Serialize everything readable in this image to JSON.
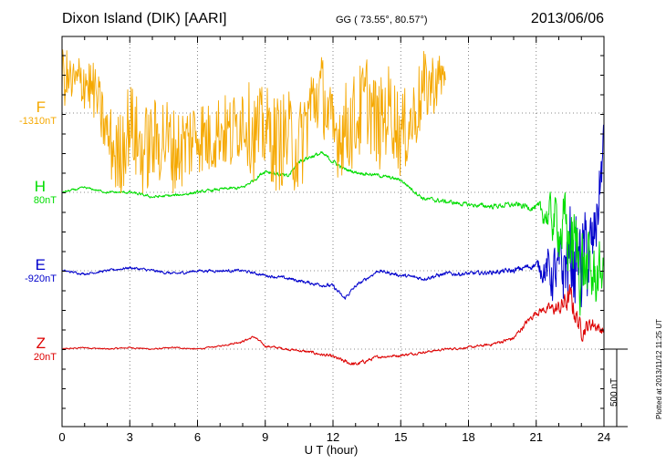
{
  "header": {
    "station": "Dixon Island (DIK)  [AARI]",
    "coords": "GG ( 73.55°,  80.57°)",
    "date": "2013/06/06"
  },
  "footer": {
    "plotted": "Plotted at 2013/11/12 11:25 UT"
  },
  "chart_data": {
    "type": "line",
    "title": "",
    "xlabel": "U T (hour)",
    "ylabel": "",
    "xlim": [
      0,
      24
    ],
    "xticks": [
      0,
      3,
      6,
      9,
      12,
      15,
      18,
      21,
      24
    ],
    "grid": true,
    "scale_bar_label": "500 nT",
    "series": [
      {
        "name": "F",
        "offset_label": "-1310nT",
        "color": "#f5a800",
        "x": [
          0,
          0.5,
          1,
          1.5,
          2,
          2.5,
          3,
          3.5,
          4,
          4.5,
          5,
          5.5,
          6,
          6.5,
          7,
          7.5,
          8,
          8.5,
          9,
          9.5,
          10,
          10.5,
          11,
          11.5,
          12,
          12.5,
          13,
          13.5,
          14,
          14.5,
          15,
          15.5,
          16,
          16.5,
          17
        ],
        "y": [
          250,
          180,
          220,
          120,
          -150,
          -300,
          -50,
          -250,
          -200,
          -150,
          -250,
          -200,
          -120,
          -180,
          -100,
          -150,
          0,
          -150,
          -100,
          -200,
          -150,
          -250,
          50,
          150,
          -150,
          -100,
          -50,
          100,
          -100,
          50,
          -150,
          -50,
          150,
          200,
          250
        ],
        "noise_amplitude": [
          200,
          180,
          200,
          180,
          220,
          300,
          280,
          300,
          280,
          300,
          280,
          280,
          260,
          250,
          240,
          260,
          260,
          300,
          280,
          320,
          300,
          320,
          280,
          250,
          280,
          300,
          320,
          300,
          300,
          280,
          280,
          260,
          250,
          200,
          120
        ]
      },
      {
        "name": "H",
        "offset_label": "80nT",
        "color": "#00dd00",
        "x": [
          0,
          1,
          2,
          3,
          4,
          5,
          6,
          7,
          8,
          8.5,
          9,
          10,
          10.5,
          11,
          11.5,
          12,
          12.5,
          13,
          14,
          15,
          16,
          17,
          18,
          19,
          20,
          21,
          21.5,
          22,
          22.5,
          23,
          23.5,
          24
        ],
        "y": [
          0,
          30,
          0,
          0,
          -30,
          -20,
          0,
          20,
          30,
          80,
          140,
          100,
          200,
          230,
          250,
          200,
          150,
          130,
          110,
          80,
          -40,
          -60,
          -80,
          -90,
          -80,
          -100,
          -150,
          -200,
          -300,
          -450,
          -550,
          -500
        ],
        "noise_amplitude": [
          8,
          8,
          8,
          10,
          10,
          10,
          10,
          10,
          12,
          12,
          15,
          15,
          15,
          15,
          15,
          15,
          12,
          12,
          12,
          12,
          15,
          15,
          15,
          18,
          20,
          25,
          120,
          200,
          300,
          300,
          250,
          150
        ]
      },
      {
        "name": "E",
        "offset_label": "-920nT",
        "color": "#0000cc",
        "x": [
          0,
          1,
          2,
          3,
          4,
          5,
          6,
          7,
          8,
          9,
          10,
          11,
          12,
          12.5,
          13,
          14,
          15,
          16,
          17,
          18,
          19,
          20,
          21,
          21.5,
          22,
          22.5,
          23,
          23.5,
          24
        ],
        "y": [
          0,
          -20,
          0,
          20,
          0,
          -20,
          0,
          0,
          0,
          -30,
          -50,
          -80,
          -100,
          -180,
          -100,
          0,
          -30,
          -50,
          -20,
          -20,
          -10,
          0,
          40,
          0,
          -50,
          100,
          50,
          100,
          800
        ],
        "noise_amplitude": [
          8,
          8,
          8,
          10,
          10,
          10,
          10,
          10,
          10,
          10,
          12,
          12,
          15,
          15,
          12,
          12,
          12,
          15,
          15,
          15,
          15,
          20,
          25,
          150,
          250,
          350,
          350,
          300,
          200
        ]
      },
      {
        "name": "Z",
        "offset_label": "20nT",
        "color": "#dd0000",
        "x": [
          0,
          1,
          2,
          3,
          4,
          5,
          6,
          7,
          8,
          8.5,
          9,
          10,
          11,
          12,
          12.5,
          13,
          14,
          15,
          16,
          17,
          18,
          19,
          20,
          20.5,
          21,
          21.5,
          22,
          22.5,
          23,
          23.5,
          24
        ],
        "y": [
          0,
          10,
          0,
          10,
          0,
          10,
          0,
          20,
          50,
          80,
          20,
          0,
          -20,
          -50,
          -80,
          -100,
          -50,
          -40,
          -20,
          0,
          10,
          30,
          70,
          160,
          240,
          260,
          260,
          330,
          120,
          170,
          110
        ],
        "noise_amplitude": [
          5,
          5,
          5,
          5,
          5,
          5,
          5,
          5,
          8,
          8,
          8,
          8,
          10,
          12,
          15,
          15,
          10,
          10,
          8,
          8,
          8,
          10,
          15,
          20,
          25,
          30,
          60,
          100,
          60,
          50,
          30
        ]
      }
    ]
  }
}
